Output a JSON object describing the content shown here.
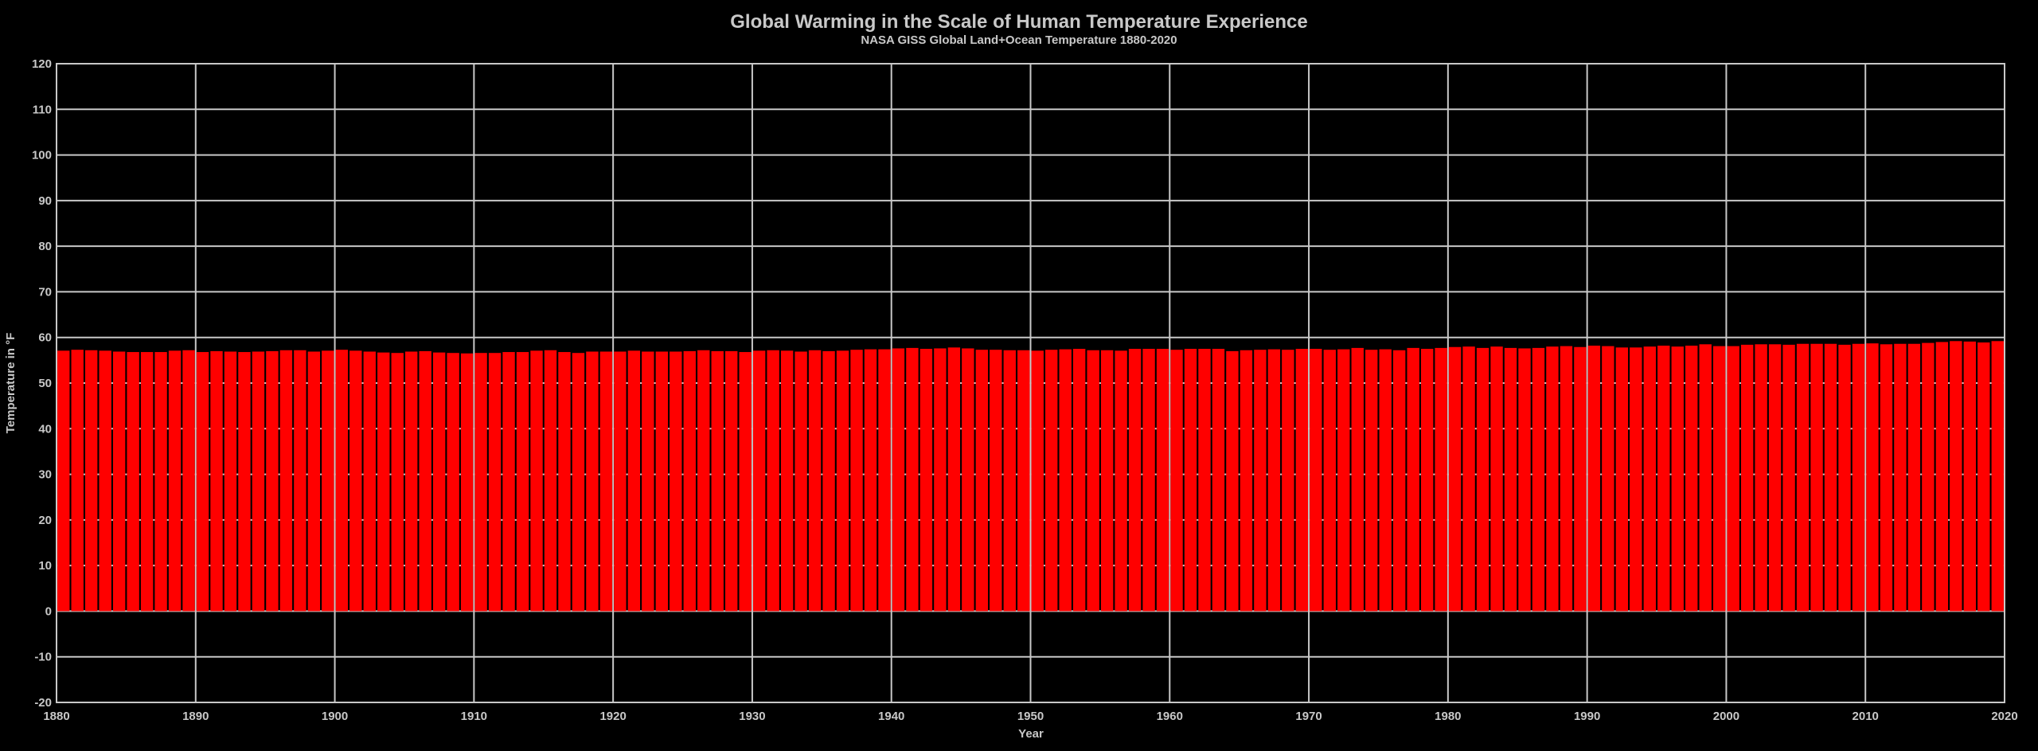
{
  "chart_data": {
    "type": "bar",
    "title": "Global Warming in the Scale of Human Temperature Experience",
    "subtitle": "NASA GISS Global Land+Ocean Temperature 1880-2020",
    "xlabel": "Year",
    "ylabel": "Temperature in °F",
    "xlim": [
      1880,
      2020
    ],
    "ylim": [
      -20,
      120
    ],
    "xticks": [
      1880,
      1890,
      1900,
      1910,
      1920,
      1930,
      1940,
      1950,
      1960,
      1970,
      1980,
      1990,
      2000,
      2010,
      2020
    ],
    "yticks": [
      -20,
      -10,
      0,
      10,
      20,
      30,
      40,
      50,
      60,
      70,
      80,
      90,
      100,
      110,
      120
    ],
    "grid": true,
    "bar_color": "#ff0000",
    "background": "#000000",
    "grid_color": "#c8c8c8",
    "x_start": 1880,
    "values": [
      57.1,
      57.3,
      57.2,
      57.1,
      56.9,
      56.8,
      56.8,
      56.8,
      57.1,
      57.2,
      56.8,
      57.0,
      56.9,
      56.8,
      56.9,
      57.0,
      57.2,
      57.2,
      56.9,
      57.1,
      57.3,
      57.1,
      56.9,
      56.7,
      56.6,
      56.9,
      57.0,
      56.7,
      56.6,
      56.5,
      56.6,
      56.6,
      56.8,
      56.8,
      57.1,
      57.2,
      56.8,
      56.6,
      56.9,
      56.9,
      56.9,
      57.1,
      56.9,
      56.9,
      56.9,
      57.0,
      57.2,
      57.0,
      57.0,
      56.8,
      57.1,
      57.2,
      57.1,
      56.9,
      57.2,
      57.0,
      57.1,
      57.3,
      57.4,
      57.4,
      57.6,
      57.7,
      57.5,
      57.6,
      57.8,
      57.6,
      57.3,
      57.3,
      57.2,
      57.2,
      57.1,
      57.3,
      57.4,
      57.5,
      57.2,
      57.2,
      57.1,
      57.5,
      57.5,
      57.5,
      57.3,
      57.5,
      57.5,
      57.5,
      57.0,
      57.2,
      57.3,
      57.4,
      57.3,
      57.5,
      57.5,
      57.3,
      57.4,
      57.7,
      57.3,
      57.4,
      57.2,
      57.7,
      57.5,
      57.7,
      57.9,
      58.0,
      57.7,
      58.0,
      57.7,
      57.6,
      57.7,
      58.0,
      58.1,
      57.9,
      58.2,
      58.1,
      57.8,
      57.8,
      58.0,
      58.2,
      58.0,
      58.2,
      58.5,
      58.1,
      58.1,
      58.4,
      58.5,
      58.5,
      58.4,
      58.6,
      58.6,
      58.6,
      58.4,
      58.6,
      58.7,
      58.5,
      58.6,
      58.6,
      58.8,
      59.0,
      59.2,
      59.1,
      58.9,
      59.2
    ]
  }
}
